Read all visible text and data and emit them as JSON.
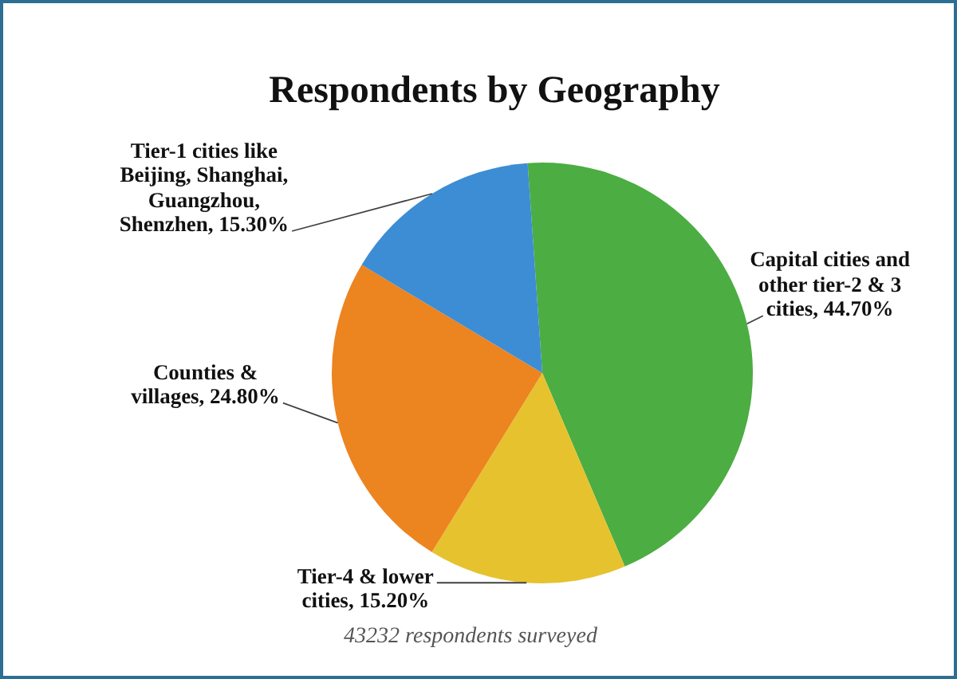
{
  "chart_data": {
    "type": "pie",
    "title": "Respondents by Geography",
    "categories": [
      "Capital cities and other tier-2 & 3 cities",
      "Tier-4 & lower cities",
      "Counties & villages",
      "Tier-1 cities like Beijing, Shanghai, Guangzhou, Shenzhen"
    ],
    "values": [
      44.7,
      15.2,
      24.8,
      15.3
    ],
    "value_labels": [
      "44.70%",
      "15.20%",
      "24.80%",
      "15.30%"
    ],
    "colors": [
      "#4cad42",
      "#e6c22e",
      "#ec8420",
      "#3c8dd3"
    ],
    "annotations": [
      "43232 respondents surveyed"
    ]
  }
}
